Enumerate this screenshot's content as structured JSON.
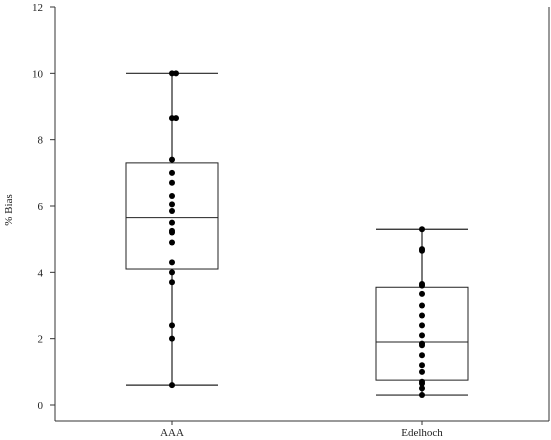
{
  "chart_data": {
    "type": "box",
    "ylabel": "% Bias",
    "ylim": [
      0,
      12
    ],
    "yticks": [
      0,
      2,
      4,
      6,
      8,
      10,
      12
    ],
    "grid": false,
    "categories": [
      "AAA",
      "Edelhoch"
    ],
    "series": [
      {
        "category": "AAA",
        "box": {
          "min": 0.6,
          "q1": 4.1,
          "median": 5.65,
          "q3": 7.3,
          "max": 10.0
        },
        "points": [
          10.0,
          10.0,
          8.65,
          8.65,
          7.4,
          7.0,
          6.7,
          6.3,
          6.05,
          5.85,
          5.5,
          5.25,
          5.2,
          4.9,
          4.3,
          4.0,
          3.7,
          2.4,
          2.0,
          0.6
        ]
      },
      {
        "category": "Edelhoch",
        "box": {
          "min": 0.3,
          "q1": 0.75,
          "median": 1.9,
          "q3": 3.55,
          "max": 5.3
        },
        "points": [
          5.3,
          4.7,
          4.65,
          3.65,
          3.6,
          3.35,
          3.0,
          2.7,
          2.4,
          2.1,
          1.85,
          1.8,
          1.5,
          1.2,
          1.0,
          0.7,
          0.65,
          0.5,
          0.3
        ]
      }
    ]
  }
}
